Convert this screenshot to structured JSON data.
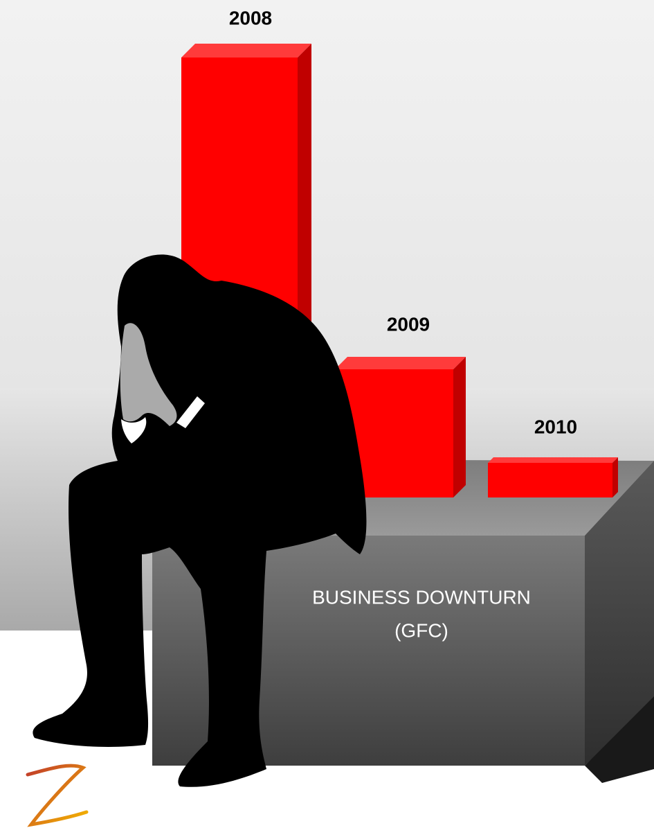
{
  "bars": [
    {
      "label": "2008"
    },
    {
      "label": "2009"
    },
    {
      "label": "2010"
    }
  ],
  "box": {
    "title": "BUSINESS DOWNTURN",
    "subtitle": "(GFC)"
  }
}
